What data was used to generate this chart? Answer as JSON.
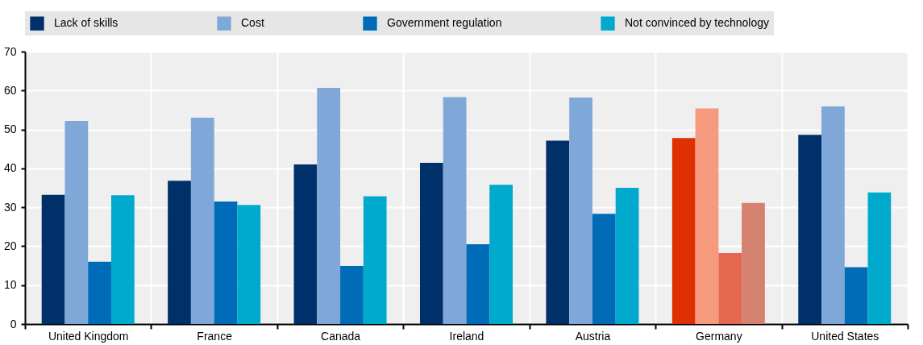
{
  "chart_data": {
    "type": "bar",
    "categories": [
      "United Kingdom",
      "France",
      "Canada",
      "Ireland",
      "Austria",
      "Germany",
      "United States"
    ],
    "series": [
      {
        "name": "Lack of skills",
        "color": "#00306a",
        "colors": [
          "#00306a",
          "#00306a",
          "#00306a",
          "#00306a",
          "#00306a",
          "#de3000",
          "#00306a"
        ],
        "values": [
          33.2,
          36.8,
          41.0,
          41.4,
          47.1,
          47.8,
          48.6
        ]
      },
      {
        "name": "Cost",
        "color": "#7fa8d9",
        "colors": [
          "#7fa8d9",
          "#7fa8d9",
          "#7fa8d9",
          "#7fa8d9",
          "#7fa8d9",
          "#f59a7d",
          "#7fa8d9"
        ],
        "values": [
          52.2,
          53.0,
          60.7,
          58.3,
          58.2,
          55.4,
          55.9
        ]
      },
      {
        "name": "Government regulation",
        "color": "#006bb6",
        "colors": [
          "#006bb6",
          "#006bb6",
          "#006bb6",
          "#006bb6",
          "#006bb6",
          "#e4674f",
          "#006bb6"
        ],
        "values": [
          16.0,
          31.5,
          14.9,
          20.5,
          28.3,
          18.2,
          14.6
        ]
      },
      {
        "name": "Not convinced by technology",
        "color": "#00aacc",
        "colors": [
          "#00aacc",
          "#00aacc",
          "#00aacc",
          "#00aacc",
          "#00aacc",
          "#d4826f",
          "#00aacc"
        ],
        "values": [
          33.1,
          30.6,
          32.8,
          35.8,
          35.0,
          31.1,
          33.8
        ]
      }
    ],
    "ylim": [
      0,
      70
    ],
    "yticks": [
      0,
      10,
      20,
      30,
      40,
      50,
      60,
      70
    ],
    "grid": true,
    "legend": "top"
  }
}
